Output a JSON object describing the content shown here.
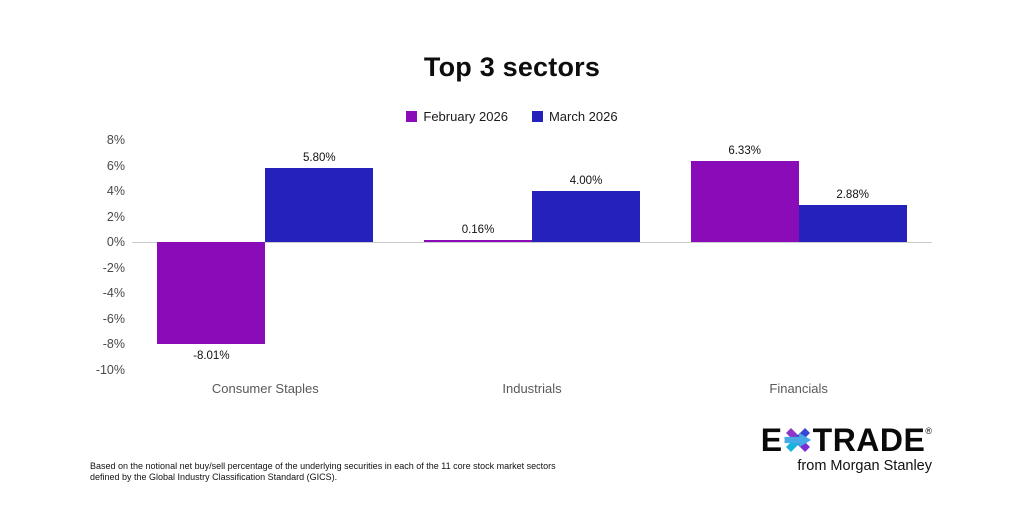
{
  "title": "Top 3 sectors",
  "chart_data": {
    "type": "bar",
    "categories": [
      "Consumer Staples",
      "Industrials",
      "Financials"
    ],
    "series": [
      {
        "name": "February 2026",
        "color": "#8A0BB8",
        "values": [
          -8.01,
          0.16,
          6.33
        ],
        "labels": [
          "-8.01%",
          "0.16%",
          "6.33%"
        ]
      },
      {
        "name": "March 2026",
        "color": "#2422BA",
        "values": [
          5.8,
          4.0,
          2.88
        ],
        "labels": [
          "5.80%",
          "4.00%",
          "2.88%"
        ]
      }
    ],
    "ylim": [
      -10,
      8
    ],
    "yticks": [
      8,
      6,
      4,
      2,
      0,
      -2,
      -4,
      -6,
      -8,
      -10
    ],
    "ytick_labels": [
      "8%",
      "6%",
      "4%",
      "2%",
      "0%",
      "-2%",
      "-4%",
      "-6%",
      "-8%",
      "-10%"
    ],
    "grid": "zero-baseline-only",
    "legend_position": "top-center"
  },
  "footnote": "Based on the notional net buy/sell percentage of the underlying securities in each of the 11 core stock market sectors defined by the Global Industry Classification Standard (GICS).",
  "logo": {
    "brand_prefix": "E",
    "brand_suffix": "TRADE",
    "registered_mark": "®",
    "tagline": "from Morgan Stanley"
  }
}
